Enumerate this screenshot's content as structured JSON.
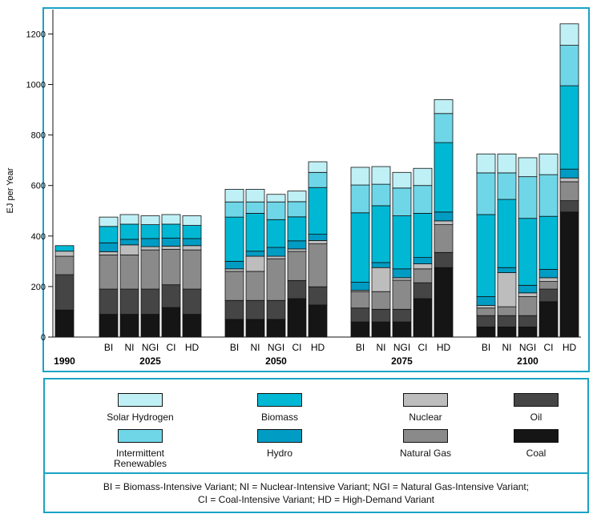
{
  "chart_data": {
    "type": "bar",
    "stacked": true,
    "ylabel": "EJ per Year",
    "ylim": [
      0,
      1250
    ],
    "yticks": [
      0,
      200,
      400,
      600,
      800,
      1000,
      1200
    ],
    "grid": false,
    "legend_position": "bottom",
    "groups": [
      {
        "label": "1990",
        "bars": [
          {
            "label": "",
            "values": {
              "coal": 107,
              "oil": 140,
              "natural_gas": 73,
              "nuclear": 20,
              "hydro": 0,
              "biomass": 22,
              "intermittent_renewables": 0,
              "solar_hydrogen": 0
            }
          }
        ]
      },
      {
        "label": "2025",
        "bars": [
          {
            "label": "BI",
            "values": {
              "coal": 90,
              "oil": 100,
              "natural_gas": 135,
              "nuclear": 13,
              "hydro": 35,
              "biomass": 65,
              "intermittent_renewables": 0,
              "solar_hydrogen": 37
            }
          },
          {
            "label": "NI",
            "values": {
              "coal": 90,
              "oil": 100,
              "natural_gas": 135,
              "nuclear": 40,
              "hydro": 22,
              "biomass": 60,
              "intermittent_renewables": 0,
              "solar_hydrogen": 38
            }
          },
          {
            "label": "NGI",
            "values": {
              "coal": 90,
              "oil": 100,
              "natural_gas": 155,
              "nuclear": 13,
              "hydro": 32,
              "biomass": 55,
              "intermittent_renewables": 0,
              "solar_hydrogen": 35
            }
          },
          {
            "label": "CI",
            "values": {
              "coal": 117,
              "oil": 90,
              "natural_gas": 140,
              "nuclear": 13,
              "hydro": 32,
              "biomass": 55,
              "intermittent_renewables": 0,
              "solar_hydrogen": 38
            }
          },
          {
            "label": "HD",
            "values": {
              "coal": 90,
              "oil": 100,
              "natural_gas": 155,
              "nuclear": 17,
              "hydro": 28,
              "biomass": 52,
              "intermittent_renewables": 0,
              "solar_hydrogen": 38
            }
          }
        ]
      },
      {
        "label": "2050",
        "bars": [
          {
            "label": "BI",
            "values": {
              "coal": 70,
              "oil": 75,
              "natural_gas": 115,
              "nuclear": 10,
              "hydro": 30,
              "biomass": 175,
              "intermittent_renewables": 60,
              "solar_hydrogen": 50
            }
          },
          {
            "label": "NI",
            "values": {
              "coal": 70,
              "oil": 75,
              "natural_gas": 115,
              "nuclear": 60,
              "hydro": 20,
              "biomass": 150,
              "intermittent_renewables": 45,
              "solar_hydrogen": 50
            }
          },
          {
            "label": "NGI",
            "values": {
              "coal": 70,
              "oil": 75,
              "natural_gas": 165,
              "nuclear": 10,
              "hydro": 35,
              "biomass": 110,
              "intermittent_renewables": 70,
              "solar_hydrogen": 30
            }
          },
          {
            "label": "CI",
            "values": {
              "coal": 152,
              "oil": 72,
              "natural_gas": 115,
              "nuclear": 10,
              "hydro": 32,
              "biomass": 95,
              "intermittent_renewables": 60,
              "solar_hydrogen": 42
            }
          },
          {
            "label": "HD",
            "values": {
              "coal": 127,
              "oil": 72,
              "natural_gas": 170,
              "nuclear": 13,
              "hydro": 25,
              "biomass": 185,
              "intermittent_renewables": 60,
              "solar_hydrogen": 42
            }
          }
        ]
      },
      {
        "label": "2075",
        "bars": [
          {
            "label": "BI",
            "values": {
              "coal": 60,
              "oil": 55,
              "natural_gas": 65,
              "nuclear": 5,
              "hydro": 32,
              "biomass": 275,
              "intermittent_renewables": 110,
              "solar_hydrogen": 70
            }
          },
          {
            "label": "NI",
            "values": {
              "coal": 60,
              "oil": 50,
              "natural_gas": 70,
              "nuclear": 95,
              "hydro": 20,
              "biomass": 225,
              "intermittent_renewables": 85,
              "solar_hydrogen": 70
            }
          },
          {
            "label": "NGI",
            "values": {
              "coal": 60,
              "oil": 50,
              "natural_gas": 115,
              "nuclear": 10,
              "hydro": 35,
              "biomass": 210,
              "intermittent_renewables": 110,
              "solar_hydrogen": 62
            }
          },
          {
            "label": "CI",
            "values": {
              "coal": 152,
              "oil": 63,
              "natural_gas": 55,
              "nuclear": 20,
              "hydro": 25,
              "biomass": 175,
              "intermittent_renewables": 110,
              "solar_hydrogen": 68
            }
          },
          {
            "label": "HD",
            "values": {
              "coal": 275,
              "oil": 60,
              "natural_gas": 110,
              "nuclear": 15,
              "hydro": 35,
              "biomass": 275,
              "intermittent_renewables": 115,
              "solar_hydrogen": 55
            }
          }
        ]
      },
      {
        "label": "2100",
        "bars": [
          {
            "label": "BI",
            "values": {
              "coal": 40,
              "oil": 45,
              "natural_gas": 30,
              "nuclear": 10,
              "hydro": 35,
              "biomass": 325,
              "intermittent_renewables": 165,
              "solar_hydrogen": 75
            }
          },
          {
            "label": "NI",
            "values": {
              "coal": 40,
              "oil": 45,
              "natural_gas": 35,
              "nuclear": 135,
              "hydro": 20,
              "biomass": 270,
              "intermittent_renewables": 105,
              "solar_hydrogen": 75
            }
          },
          {
            "label": "NGI",
            "values": {
              "coal": 40,
              "oil": 45,
              "natural_gas": 75,
              "nuclear": 15,
              "hydro": 30,
              "biomass": 265,
              "intermittent_renewables": 165,
              "solar_hydrogen": 75
            }
          },
          {
            "label": "CI",
            "values": {
              "coal": 140,
              "oil": 50,
              "natural_gas": 30,
              "nuclear": 15,
              "hydro": 33,
              "biomass": 210,
              "intermittent_renewables": 165,
              "solar_hydrogen": 82
            }
          },
          {
            "label": "HD",
            "values": {
              "coal": 495,
              "oil": 45,
              "natural_gas": 75,
              "nuclear": 15,
              "hydro": 35,
              "biomass": 330,
              "intermittent_renewables": 160,
              "solar_hydrogen": 85
            }
          }
        ]
      }
    ]
  },
  "legend": {
    "items": [
      {
        "key": "solar_hydrogen",
        "label": "Solar Hydrogen",
        "color": "#bff0f5"
      },
      {
        "key": "biomass",
        "label": "Biomass",
        "color": "#00b8d4"
      },
      {
        "key": "nuclear",
        "label": "Nuclear",
        "color": "#bdbdbd"
      },
      {
        "key": "oil",
        "label": "Oil",
        "color": "#454545"
      },
      {
        "key": "intermittent_renewables",
        "label": "Intermittent\nRenewables",
        "color": "#6fd6e8"
      },
      {
        "key": "hydro",
        "label": "Hydro",
        "color": "#009cc4"
      },
      {
        "key": "natural_gas",
        "label": "Natural Gas",
        "color": "#8a8a8a"
      },
      {
        "key": "coal",
        "label": "Coal",
        "color": "#151515"
      }
    ],
    "note_line1": "BI = Biomass-Intensive Variant; NI = Nuclear-Intensive Variant; NGI = Natural Gas-Intensive Variant;",
    "note_line2": "CI = Coal-Intensive Variant; HD = High-Demand Variant"
  },
  "colors": {
    "frame": "#1aa3c4"
  }
}
